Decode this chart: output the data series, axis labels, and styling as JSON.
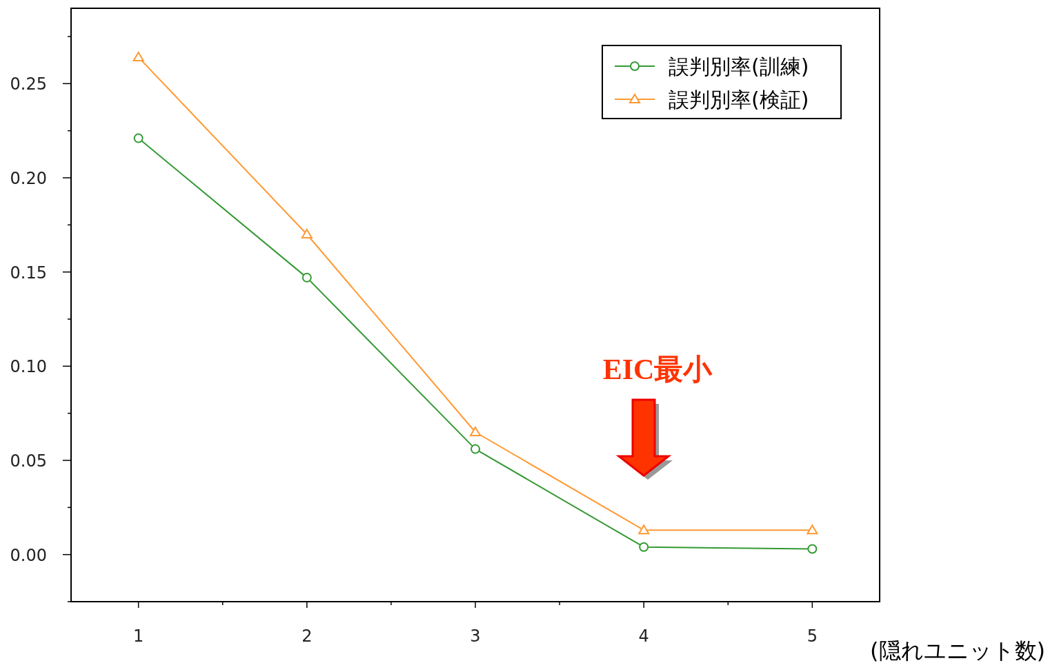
{
  "chart_data": {
    "type": "line",
    "xlabel": "(隠れユニット数)",
    "x": [
      1,
      2,
      3,
      4,
      5
    ],
    "series": [
      {
        "name": "誤判別率(訓練)",
        "color": "#339933",
        "marker": "circle",
        "values": [
          0.221,
          0.147,
          0.056,
          0.004,
          0.003
        ]
      },
      {
        "name": "誤判別率(検証)",
        "color": "#ff9933",
        "marker": "triangle",
        "values": [
          0.264,
          0.17,
          0.065,
          0.013,
          0.013
        ]
      }
    ],
    "xlim": [
      0.6,
      5.4
    ],
    "xticks": [
      1,
      {
        "value": 1.5,
        "label": null
      },
      2,
      {
        "value": 2.5,
        "label": null
      },
      3,
      {
        "value": 3.5,
        "label": null
      },
      4,
      {
        "value": 4.5,
        "label": null
      },
      5
    ],
    "ylim": [
      -0.025,
      0.29
    ],
    "yticks": [
      {
        "value": -0.025,
        "label": null
      },
      {
        "value": 0,
        "label": "0.00"
      },
      {
        "value": 0.025,
        "label": null
      },
      {
        "value": 0.05,
        "label": "0.05"
      },
      {
        "value": 0.075,
        "label": null
      },
      {
        "value": 0.1,
        "label": "0.10"
      },
      {
        "value": 0.125,
        "label": null
      },
      {
        "value": 0.15,
        "label": "0.15"
      },
      {
        "value": 0.175,
        "label": null
      },
      {
        "value": 0.2,
        "label": "0.20"
      },
      {
        "value": 0.225,
        "label": null
      },
      {
        "value": 0.25,
        "label": "0.25"
      },
      {
        "value": 0.275,
        "label": null
      }
    ],
    "annotations": [
      "EIC最小"
    ],
    "grid": false,
    "legend": "top right",
    "line_style": "solid"
  }
}
